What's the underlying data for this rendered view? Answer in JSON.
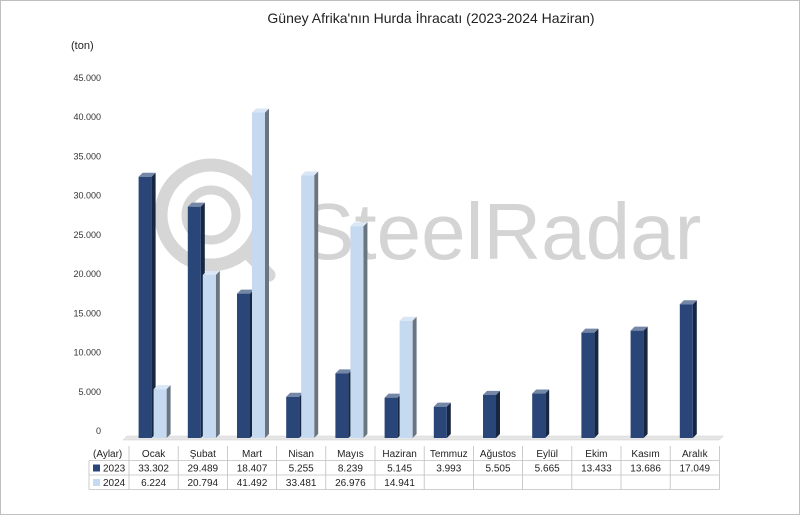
{
  "chart_data": {
    "type": "bar",
    "title": "Güney Afrika'nın Hurda İhracatı (2023-2024 Haziran)",
    "ylabel": "(ton)",
    "xlabel": "(Aylar)",
    "watermark": "SteelRadar",
    "ylim": [
      0,
      45000
    ],
    "yticks": [
      "0",
      "5.000",
      "10.000",
      "15.000",
      "20.000",
      "25.000",
      "30.000",
      "35.000",
      "40.000",
      "45.000"
    ],
    "categories": [
      "Ocak",
      "Şubat",
      "Mart",
      "Nisan",
      "Mayıs",
      "Haziran",
      "Temmuz",
      "Ağustos",
      "Eylül",
      "Ekim",
      "Kasım",
      "Aralık"
    ],
    "series": [
      {
        "name": "2023",
        "color": "#2a4678",
        "values": [
          33302,
          29489,
          18407,
          5255,
          8239,
          5145,
          3993,
          5505,
          5665,
          13433,
          13686,
          17049
        ],
        "labels": [
          "33.302",
          "29.489",
          "18.407",
          "5.255",
          "8.239",
          "5.145",
          "3.993",
          "5.505",
          "5.665",
          "13.433",
          "13.686",
          "17.049"
        ]
      },
      {
        "name": "2024",
        "color": "#c5d9f1",
        "values": [
          6224,
          20794,
          41492,
          33481,
          26976,
          14941,
          null,
          null,
          null,
          null,
          null,
          null
        ],
        "labels": [
          "6.224",
          "20.794",
          "41.492",
          "33.481",
          "26.976",
          "14.941",
          "",
          "",
          "",
          "",
          "",
          ""
        ]
      }
    ],
    "legend": "table-below",
    "grid": false
  }
}
